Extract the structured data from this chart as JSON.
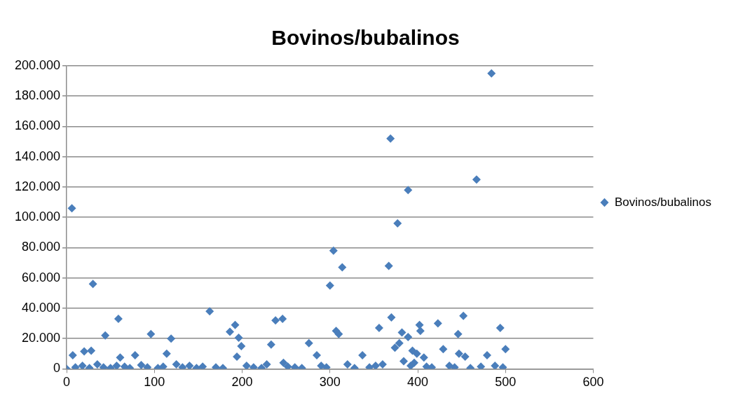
{
  "chart_data": {
    "type": "scatter",
    "title": "Bovinos/bubalinos",
    "marker": "diamond",
    "legend": "right",
    "grid": "y",
    "xlim": [
      0,
      600
    ],
    "xticks": [
      0,
      100,
      200,
      300,
      400,
      500,
      600
    ],
    "ylim": [
      0,
      200000
    ],
    "yticks": [
      {
        "value": 0,
        "label": "0"
      },
      {
        "value": 20000,
        "label": "20.000"
      },
      {
        "value": 40000,
        "label": "40.000"
      },
      {
        "value": 60000,
        "label": "60.000"
      },
      {
        "value": 80000,
        "label": "80.000"
      },
      {
        "value": 100000,
        "label": "100.000"
      },
      {
        "value": 120000,
        "label": "120.000"
      },
      {
        "value": 140000,
        "label": "140.000"
      },
      {
        "value": 160000,
        "label": "160.000"
      },
      {
        "value": 180000,
        "label": "180.000"
      },
      {
        "value": 200000,
        "label": "200.000"
      }
    ],
    "series": [
      {
        "name": "Bovinos/bubalinos",
        "color": "#4a7ebb",
        "x": [
          6,
          7,
          20,
          28,
          30,
          44,
          59,
          61,
          78,
          96,
          114,
          119,
          163,
          186,
          192,
          194,
          196,
          199,
          233,
          238,
          246,
          247,
          276,
          285,
          300,
          304,
          307,
          310,
          314,
          337,
          356,
          367,
          369,
          370,
          374,
          377,
          379,
          382,
          389,
          389,
          394,
          399,
          402,
          403,
          407,
          423,
          429,
          446,
          447,
          452,
          454,
          467,
          479,
          484,
          494,
          500,
          0,
          10,
          18,
          26,
          35,
          42,
          50,
          57,
          66,
          72,
          85,
          92,
          104,
          110,
          125,
          132,
          140,
          148,
          155,
          170,
          178,
          205,
          213,
          222,
          228,
          252,
          260,
          268,
          290,
          296,
          320,
          328,
          345,
          352,
          360,
          384,
          392,
          396,
          410,
          416,
          436,
          442,
          460,
          472,
          488,
          497
        ],
        "values": [
          106000,
          9000,
          11500,
          12000,
          56000,
          22000,
          33000,
          7500,
          9000,
          23000,
          10000,
          20000,
          38000,
          24500,
          29000,
          8000,
          20500,
          15000,
          16000,
          32000,
          33000,
          4000,
          17000,
          9000,
          55000,
          78000,
          25000,
          23000,
          67000,
          9000,
          27000,
          68000,
          152000,
          34000,
          14000,
          96000,
          17000,
          24000,
          118000,
          21000,
          12000,
          10000,
          29000,
          25000,
          7500,
          30000,
          13000,
          23000,
          10000,
          35000,
          8000,
          125000,
          9000,
          195000,
          27000,
          13000,
          0,
          1000,
          2000,
          500,
          3000,
          1000,
          500,
          2000,
          1500,
          500,
          2500,
          1000,
          500,
          1500,
          3000,
          1000,
          2000,
          500,
          1500,
          1000,
          500,
          2000,
          1000,
          500,
          3000,
          1500,
          1000,
          500,
          2000,
          1000,
          3000,
          500,
          1000,
          2000,
          3000,
          5000,
          2000,
          4000,
          1500,
          1000,
          2000,
          1000,
          500,
          1500,
          2000,
          1000
        ]
      }
    ]
  }
}
